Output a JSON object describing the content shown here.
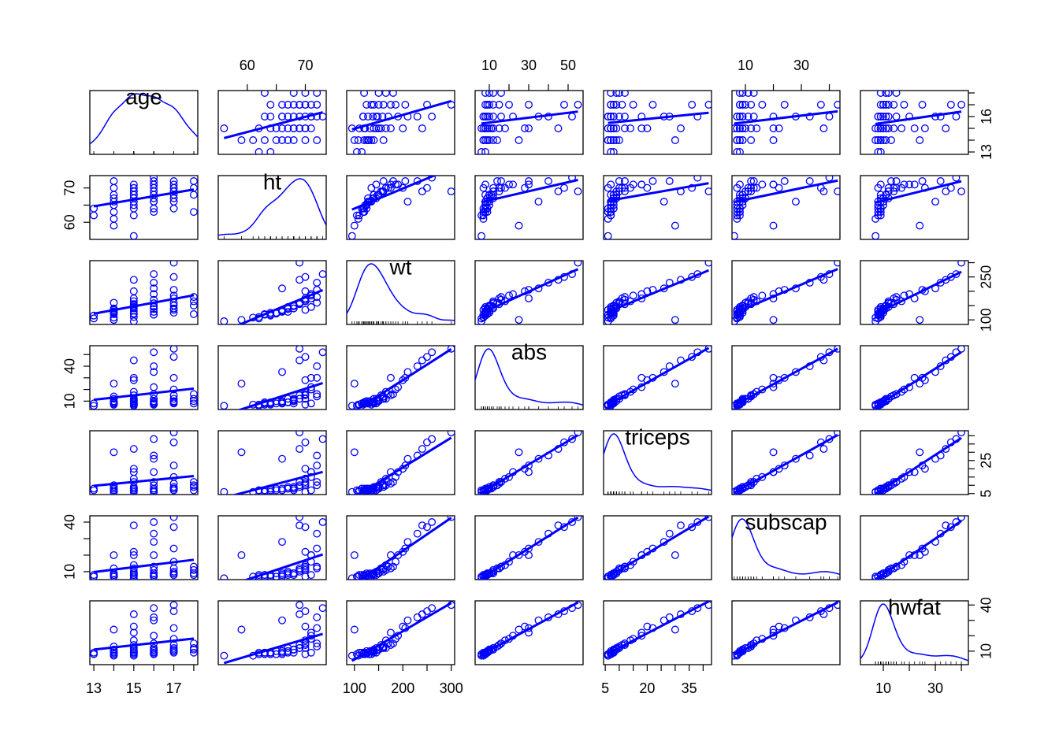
{
  "chart_data": {
    "type": "scatter_matrix",
    "color": "#0000ff",
    "variables": [
      {
        "name": "age",
        "lim": [
          12.8,
          18.2
        ],
        "ticks": [
          13,
          14,
          15,
          16,
          17,
          18
        ],
        "xtick_labels": [
          13,
          15,
          17
        ],
        "ytick_labels": [
          13,
          16
        ],
        "values": [
          13,
          13,
          14,
          14,
          14,
          14,
          14,
          14,
          14,
          14,
          15,
          15,
          15,
          15,
          15,
          15,
          15,
          15,
          15,
          15,
          15,
          15,
          16,
          16,
          16,
          16,
          16,
          16,
          16,
          16,
          16,
          16,
          16,
          17,
          17,
          17,
          17,
          17,
          17,
          17,
          17,
          17,
          17,
          18,
          18,
          18,
          18,
          14,
          15,
          16
        ]
      },
      {
        "name": "ht",
        "lim": [
          55,
          73.6
        ],
        "ticks": [
          60,
          65,
          70
        ],
        "xtick_labels": [
          60,
          70
        ],
        "ytick_labels": [
          60,
          70
        ],
        "values": [
          62,
          64,
          61,
          63,
          65,
          66,
          68,
          70,
          72,
          59,
          56,
          62,
          64,
          66,
          67,
          68,
          69,
          70,
          71,
          69,
          70,
          68,
          63,
          66,
          67,
          68,
          69,
          70,
          71,
          72,
          73,
          71,
          66,
          64,
          66,
          68,
          69,
          70,
          71,
          72,
          69,
          70,
          67,
          63,
          68,
          70,
          72,
          67,
          65,
          64
        ]
      },
      {
        "name": "wt",
        "lim": [
          84,
          307
        ],
        "ticks": [
          100,
          150,
          200,
          250,
          300
        ],
        "xtick_labels": [
          100,
          200,
          300
        ],
        "ytick_labels": [
          100,
          250
        ],
        "values": [
          105,
          115,
          108,
          120,
          125,
          130,
          140,
          135,
          160,
          100,
          95,
          110,
          120,
          132,
          145,
          150,
          155,
          165,
          175,
          240,
          200,
          140,
          118,
          128,
          138,
          148,
          158,
          170,
          190,
          230,
          260,
          145,
          210,
          125,
          135,
          150,
          160,
          175,
          185,
          205,
          300,
          250,
          140,
          120,
          150,
          165,
          180,
          128,
          122,
          118
        ]
      },
      {
        "name": "abs",
        "lim": [
          2.8,
          57.6
        ],
        "ticks": [
          10,
          20,
          30,
          40,
          50
        ],
        "xtick_labels": [
          10,
          30,
          50
        ],
        "ytick_labels": [
          10,
          40
        ],
        "values": [
          6,
          8,
          7,
          9,
          10,
          8,
          12,
          7,
          14,
          25,
          6,
          7,
          9,
          10,
          12,
          11,
          15,
          18,
          30,
          45,
          28,
          8,
          7,
          8,
          9,
          10,
          12,
          16,
          22,
          40,
          52,
          8,
          35,
          8,
          9,
          10,
          12,
          15,
          20,
          30,
          55,
          48,
          9,
          8,
          10,
          12,
          16,
          9,
          8,
          7
        ]
      },
      {
        "name": "triceps",
        "lim": [
          4.4,
          43
        ],
        "ticks": [
          5,
          10,
          15,
          20,
          25,
          30,
          35,
          40
        ],
        "xtick_labels": [
          5,
          20,
          35
        ],
        "ytick_labels": [
          5,
          25
        ],
        "values": [
          7,
          8,
          6,
          7,
          8,
          7,
          9,
          6,
          10,
          30,
          6,
          7,
          8,
          8,
          9,
          8,
          12,
          14,
          18,
          32,
          20,
          7,
          6,
          7,
          8,
          8,
          10,
          12,
          18,
          28,
          38,
          7,
          26,
          7,
          7,
          8,
          9,
          11,
          15,
          22,
          42,
          36,
          8,
          7,
          9,
          10,
          12,
          8,
          7,
          6
        ]
      },
      {
        "name": "subscap",
        "lim": [
          5.2,
          43.8
        ],
        "ticks": [
          10,
          20,
          30,
          40
        ],
        "xtick_labels": [
          10,
          30
        ],
        "ytick_labels": [
          10,
          40
        ],
        "values": [
          7,
          8,
          7,
          8,
          9,
          7,
          9,
          7,
          12,
          20,
          6,
          8,
          8,
          9,
          10,
          9,
          12,
          14,
          20,
          38,
          22,
          8,
          7,
          8,
          9,
          9,
          11,
          13,
          20,
          33,
          40,
          8,
          28,
          8,
          8,
          9,
          10,
          12,
          16,
          24,
          43,
          37,
          9,
          8,
          9,
          11,
          13,
          8,
          7,
          7
        ]
      },
      {
        "name": "hwfat",
        "lim": [
          1.2,
          42.7
        ],
        "ticks": [
          10,
          20,
          30,
          40
        ],
        "xtick_labels": [
          10,
          30
        ],
        "ytick_labels": [
          10,
          40
        ],
        "values": [
          8,
          9,
          7,
          9,
          10,
          8,
          11,
          8,
          13,
          24,
          7,
          9,
          9,
          10,
          12,
          11,
          14,
          17,
          22,
          34,
          26,
          9,
          8,
          9,
          10,
          11,
          12,
          15,
          20,
          32,
          38,
          9,
          30,
          9,
          10,
          11,
          12,
          14,
          18,
          25,
          40,
          36,
          10,
          9,
          11,
          12,
          15,
          9,
          8,
          8
        ]
      }
    ]
  }
}
